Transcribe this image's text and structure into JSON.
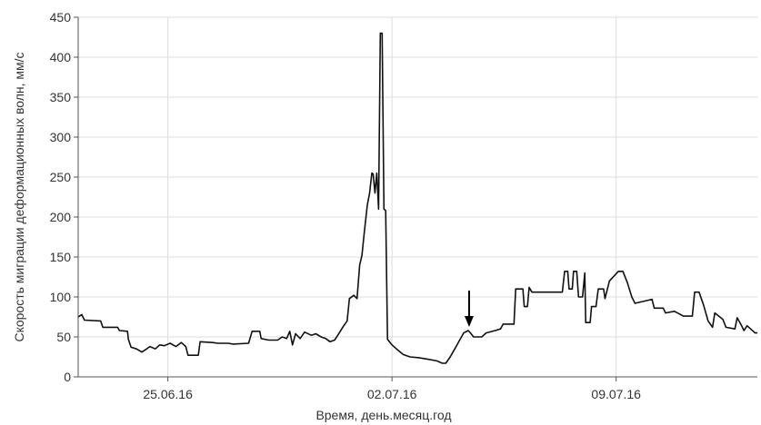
{
  "chart_data": {
    "type": "line",
    "title": "",
    "xlabel": "Время, день.месяц.год",
    "ylabel": "Скорость миграции деформационных волн, мм/с",
    "ylim": [
      0,
      450
    ],
    "yticks": [
      0,
      50,
      100,
      150,
      200,
      250,
      300,
      350,
      400,
      450
    ],
    "xlim": [
      0,
      15.15
    ],
    "xticks": [
      {
        "x": 2,
        "label": "25.06.16"
      },
      {
        "x": 7,
        "label": "02.07.16"
      },
      {
        "x": 12,
        "label": "09.07.16"
      }
    ],
    "grid": true,
    "line_color": "#111111",
    "grid_color": "#dddddd",
    "annotation": {
      "type": "arrow-down",
      "x": 8.72,
      "y": 58
    },
    "series": [
      {
        "values": [
          [
            0.0,
            75
          ],
          [
            0.08,
            78
          ],
          [
            0.14,
            71
          ],
          [
            0.5,
            70
          ],
          [
            0.55,
            62
          ],
          [
            0.88,
            62
          ],
          [
            0.92,
            58
          ],
          [
            1.1,
            57
          ],
          [
            1.12,
            47
          ],
          [
            1.18,
            37
          ],
          [
            1.3,
            35
          ],
          [
            1.42,
            31
          ],
          [
            1.5,
            34
          ],
          [
            1.6,
            38
          ],
          [
            1.72,
            35
          ],
          [
            1.82,
            40
          ],
          [
            1.92,
            39
          ],
          [
            2.05,
            42
          ],
          [
            2.18,
            38
          ],
          [
            2.3,
            43
          ],
          [
            2.4,
            38
          ],
          [
            2.45,
            27
          ],
          [
            2.68,
            27
          ],
          [
            2.72,
            44
          ],
          [
            3.0,
            43
          ],
          [
            3.12,
            42
          ],
          [
            3.35,
            42
          ],
          [
            3.45,
            41
          ],
          [
            3.8,
            42
          ],
          [
            3.88,
            57
          ],
          [
            4.05,
            57
          ],
          [
            4.08,
            48
          ],
          [
            4.25,
            46
          ],
          [
            4.45,
            46
          ],
          [
            4.55,
            50
          ],
          [
            4.65,
            48
          ],
          [
            4.72,
            57
          ],
          [
            4.78,
            40
          ],
          [
            4.85,
            54
          ],
          [
            4.95,
            48
          ],
          [
            5.05,
            56
          ],
          [
            5.2,
            52
          ],
          [
            5.3,
            54
          ],
          [
            5.42,
            50
          ],
          [
            5.52,
            48
          ],
          [
            5.62,
            44
          ],
          [
            5.72,
            46
          ],
          [
            5.8,
            53
          ],
          [
            5.9,
            62
          ],
          [
            6.0,
            70
          ],
          [
            6.05,
            98
          ],
          [
            6.15,
            102
          ],
          [
            6.22,
            98
          ],
          [
            6.28,
            140
          ],
          [
            6.33,
            152
          ],
          [
            6.38,
            180
          ],
          [
            6.45,
            215
          ],
          [
            6.5,
            230
          ],
          [
            6.55,
            255
          ],
          [
            6.58,
            254
          ],
          [
            6.62,
            230
          ],
          [
            6.66,
            255
          ],
          [
            6.7,
            210
          ],
          [
            6.74,
            430
          ],
          [
            6.78,
            430
          ],
          [
            6.82,
            210
          ],
          [
            6.86,
            208
          ],
          [
            6.9,
            47
          ],
          [
            7.0,
            40
          ],
          [
            7.1,
            35
          ],
          [
            7.25,
            28
          ],
          [
            7.4,
            25
          ],
          [
            7.6,
            24
          ],
          [
            7.8,
            22
          ],
          [
            8.0,
            20
          ],
          [
            8.12,
            17
          ],
          [
            8.2,
            17
          ],
          [
            8.3,
            25
          ],
          [
            8.4,
            35
          ],
          [
            8.5,
            45
          ],
          [
            8.6,
            55
          ],
          [
            8.7,
            58
          ],
          [
            8.75,
            55
          ],
          [
            8.82,
            50
          ],
          [
            9.0,
            50
          ],
          [
            9.1,
            55
          ],
          [
            9.3,
            58
          ],
          [
            9.42,
            60
          ],
          [
            9.48,
            66
          ],
          [
            9.72,
            66
          ],
          [
            9.76,
            110
          ],
          [
            9.92,
            110
          ],
          [
            9.95,
            88
          ],
          [
            10.02,
            88
          ],
          [
            10.06,
            112
          ],
          [
            10.12,
            106
          ],
          [
            10.5,
            106
          ],
          [
            10.8,
            106
          ],
          [
            10.85,
            132
          ],
          [
            10.92,
            132
          ],
          [
            10.95,
            110
          ],
          [
            11.02,
            110
          ],
          [
            11.05,
            132
          ],
          [
            11.12,
            132
          ],
          [
            11.16,
            100
          ],
          [
            11.25,
            100
          ],
          [
            11.3,
            130
          ],
          [
            11.32,
            68
          ],
          [
            11.42,
            68
          ],
          [
            11.45,
            88
          ],
          [
            11.55,
            88
          ],
          [
            11.6,
            110
          ],
          [
            11.72,
            110
          ],
          [
            11.75,
            98
          ],
          [
            11.85,
            120
          ],
          [
            12.05,
            132
          ],
          [
            12.15,
            132
          ],
          [
            12.25,
            118
          ],
          [
            12.35,
            100
          ],
          [
            12.42,
            92
          ],
          [
            12.8,
            97
          ],
          [
            12.85,
            86
          ],
          [
            13.05,
            86
          ],
          [
            13.1,
            80
          ],
          [
            13.3,
            82
          ],
          [
            13.5,
            76
          ],
          [
            13.7,
            76
          ],
          [
            13.75,
            106
          ],
          [
            13.85,
            106
          ],
          [
            13.95,
            90
          ],
          [
            14.05,
            70
          ],
          [
            14.15,
            62
          ],
          [
            14.2,
            80
          ],
          [
            14.38,
            72
          ],
          [
            14.45,
            62
          ],
          [
            14.65,
            60
          ],
          [
            14.7,
            74
          ],
          [
            14.8,
            64
          ],
          [
            14.85,
            58
          ],
          [
            14.92,
            64
          ],
          [
            15.0,
            60
          ],
          [
            15.1,
            55
          ],
          [
            15.15,
            55
          ]
        ]
      }
    ]
  }
}
